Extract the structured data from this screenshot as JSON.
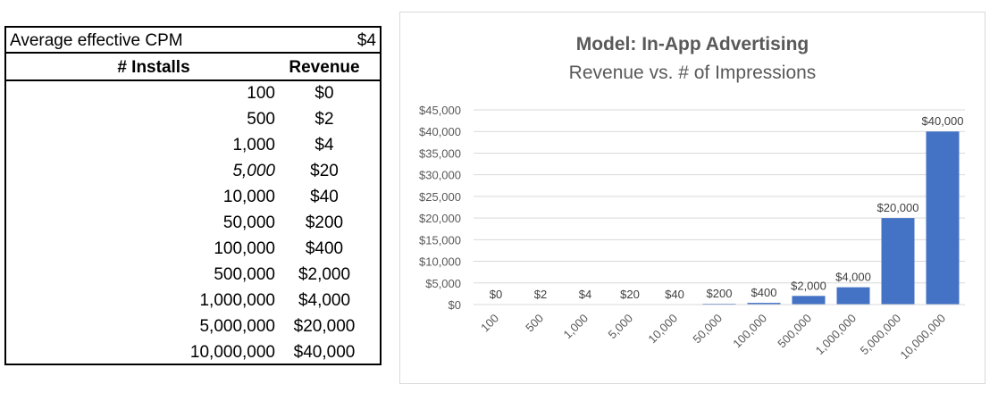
{
  "table": {
    "cpm_label": "Average effective CPM",
    "cpm_value": "$4",
    "header_installs": "# Installs",
    "header_revenue": "Revenue",
    "rows": [
      {
        "installs": "100",
        "revenue": "$0"
      },
      {
        "installs": "500",
        "revenue": "$2"
      },
      {
        "installs": "1,000",
        "revenue": "$4"
      },
      {
        "installs": "5,000",
        "revenue": "$20"
      },
      {
        "installs": "10,000",
        "revenue": "$40"
      },
      {
        "installs": "50,000",
        "revenue": "$200"
      },
      {
        "installs": "100,000",
        "revenue": "$400"
      },
      {
        "installs": "500,000",
        "revenue": "$2,000"
      },
      {
        "installs": "1,000,000",
        "revenue": "$4,000"
      },
      {
        "installs": "5,000,000",
        "revenue": "$20,000"
      },
      {
        "installs": "10,000,000",
        "revenue": "$40,000"
      }
    ]
  },
  "chart_data": {
    "type": "bar",
    "title": "Model: In-App Advertising",
    "subtitle": "Revenue vs. # of Impressions",
    "categories": [
      "100",
      "500",
      "1,000",
      "5,000",
      "10,000",
      "50,000",
      "100,000",
      "500,000",
      "1,000,000",
      "5,000,000",
      "10,000,000"
    ],
    "values": [
      0.4,
      2,
      4,
      20,
      40,
      200,
      400,
      2000,
      4000,
      20000,
      40000
    ],
    "data_labels": [
      "$0",
      "$2",
      "$4",
      "$20",
      "$40",
      "$200",
      "$400",
      "$2,000",
      "$4,000",
      "$20,000",
      "$40,000"
    ],
    "ylim": [
      0,
      45000
    ],
    "yticks": [
      0,
      5000,
      10000,
      15000,
      20000,
      25000,
      30000,
      35000,
      40000,
      45000
    ],
    "ytick_labels": [
      "$0",
      "$5,000",
      "$10,000",
      "$15,000",
      "$20,000",
      "$25,000",
      "$30,000",
      "$35,000",
      "$40,000",
      "$45,000"
    ],
    "grid": true,
    "bar_color": "#4472c4"
  }
}
